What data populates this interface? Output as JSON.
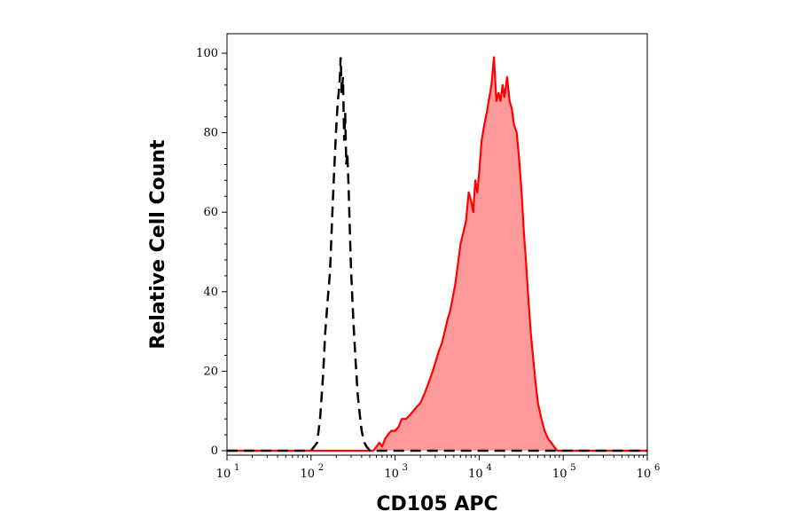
{
  "chart_data": {
    "type": "area",
    "xlabel": "CD105 APC",
    "ylabel": "Relative Cell Count",
    "x_scale": "log",
    "xlim": [
      10,
      1000000
    ],
    "ylim": [
      0,
      100
    ],
    "x_ticks": [
      {
        "value": 10,
        "base": "10",
        "exp": "1"
      },
      {
        "value": 100,
        "base": "10",
        "exp": "2"
      },
      {
        "value": 1000,
        "base": "10",
        "exp": "3"
      },
      {
        "value": 10000,
        "base": "10",
        "exp": "4"
      },
      {
        "value": 100000,
        "base": "10",
        "exp": "5"
      },
      {
        "value": 1000000,
        "base": "10",
        "exp": "6"
      }
    ],
    "y_ticks": [
      {
        "value": 0,
        "label": "0"
      },
      {
        "value": 20,
        "label": "20"
      },
      {
        "value": 40,
        "label": "40"
      },
      {
        "value": 60,
        "label": "60"
      },
      {
        "value": 80,
        "label": "80"
      },
      {
        "value": 100,
        "label": "100"
      }
    ],
    "grid": false,
    "series": [
      {
        "style": "dashed-line",
        "color": "#000000",
        "x": [
          10,
          100,
          118,
          128,
          138,
          148,
          158,
          168,
          178,
          188,
          198,
          208,
          218,
          225,
          232,
          240,
          248,
          255,
          262,
          270,
          280,
          290,
          300,
          320,
          340,
          360,
          380,
          400,
          430,
          460,
          500,
          1000,
          10000,
          100000,
          1000000
        ],
        "y": [
          0,
          0,
          2,
          8,
          18,
          30,
          38,
          45,
          58,
          70,
          80,
          88,
          92,
          99,
          90,
          94,
          78,
          85,
          72,
          75,
          66,
          55,
          45,
          32,
          22,
          14,
          9,
          5,
          2,
          1,
          0,
          0,
          0,
          0,
          0
        ]
      },
      {
        "style": "filled-area",
        "color": "#ff0000",
        "fill": "#ff9a9a",
        "x": [
          10,
          550,
          600,
          650,
          700,
          760,
          820,
          900,
          1000,
          1100,
          1200,
          1350,
          1500,
          1650,
          1800,
          2000,
          2200,
          2400,
          2600,
          2800,
          3000,
          3300,
          3600,
          3900,
          4200,
          4500,
          4800,
          5200,
          5600,
          6000,
          6500,
          7000,
          7500,
          8000,
          8500,
          9000,
          9500,
          10000,
          10700,
          11500,
          12300,
          13000,
          14000,
          15000,
          16000,
          17000,
          18000,
          19000,
          20000,
          21500,
          23000,
          24500,
          26000,
          28000,
          30000,
          32000,
          34000,
          36000,
          38000,
          41000,
          44000,
          47000,
          50000,
          55000,
          60000,
          66000,
          72000,
          78000,
          85000,
          100000,
          1000000
        ],
        "y": [
          0,
          0,
          1,
          2,
          1,
          3,
          4,
          5,
          5,
          6,
          8,
          8,
          9,
          10,
          11,
          12,
          14,
          16,
          18,
          20,
          22,
          25,
          27,
          30,
          33,
          35,
          38,
          42,
          47,
          52,
          55,
          58,
          65,
          63,
          60,
          68,
          65,
          70,
          78,
          82,
          85,
          88,
          92,
          99,
          88,
          90,
          88,
          92,
          89,
          94,
          88,
          86,
          82,
          80,
          73,
          65,
          55,
          48,
          40,
          30,
          23,
          17,
          12,
          8,
          5,
          3,
          2,
          1,
          0,
          0,
          0
        ]
      }
    ]
  }
}
